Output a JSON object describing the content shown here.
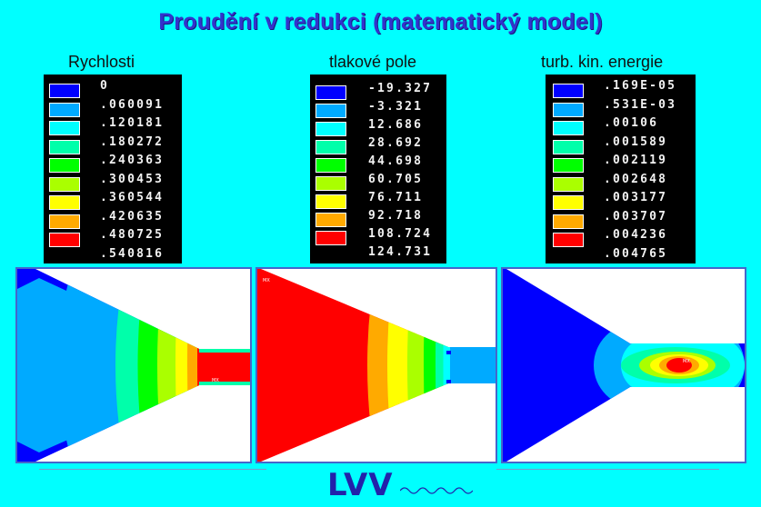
{
  "title": "Proudění v redukci (matematický model)",
  "labels": [
    "Rychlosti",
    "tlakové pole",
    "turb. kin. energie"
  ],
  "legend_colors": [
    "#0000ff",
    "#00aaff",
    "#00ffff",
    "#00ffaa",
    "#00ff00",
    "#aaff00",
    "#ffff00",
    "#ffaa00",
    "#ff0000"
  ],
  "legends": [
    {
      "values": [
        "0",
        ".060091",
        ".120181",
        ".180272",
        ".240363",
        ".300453",
        ".360544",
        ".420635",
        ".480725",
        ".540816"
      ]
    },
    {
      "values": [
        "-19.327",
        "-3.321",
        "12.686",
        "28.692",
        "44.698",
        "60.705",
        "76.711",
        "92.718",
        "108.724",
        "124.731"
      ]
    },
    {
      "values": [
        ".169E-05",
        ".531E-03",
        ".00106",
        ".001589",
        ".002119",
        ".002648",
        ".003177",
        ".003707",
        ".004236",
        ".004765"
      ]
    }
  ],
  "panel_tags": {
    "velocity": "MX",
    "pressure": "MX",
    "turbulence": "MX"
  },
  "logo": "LVV"
}
